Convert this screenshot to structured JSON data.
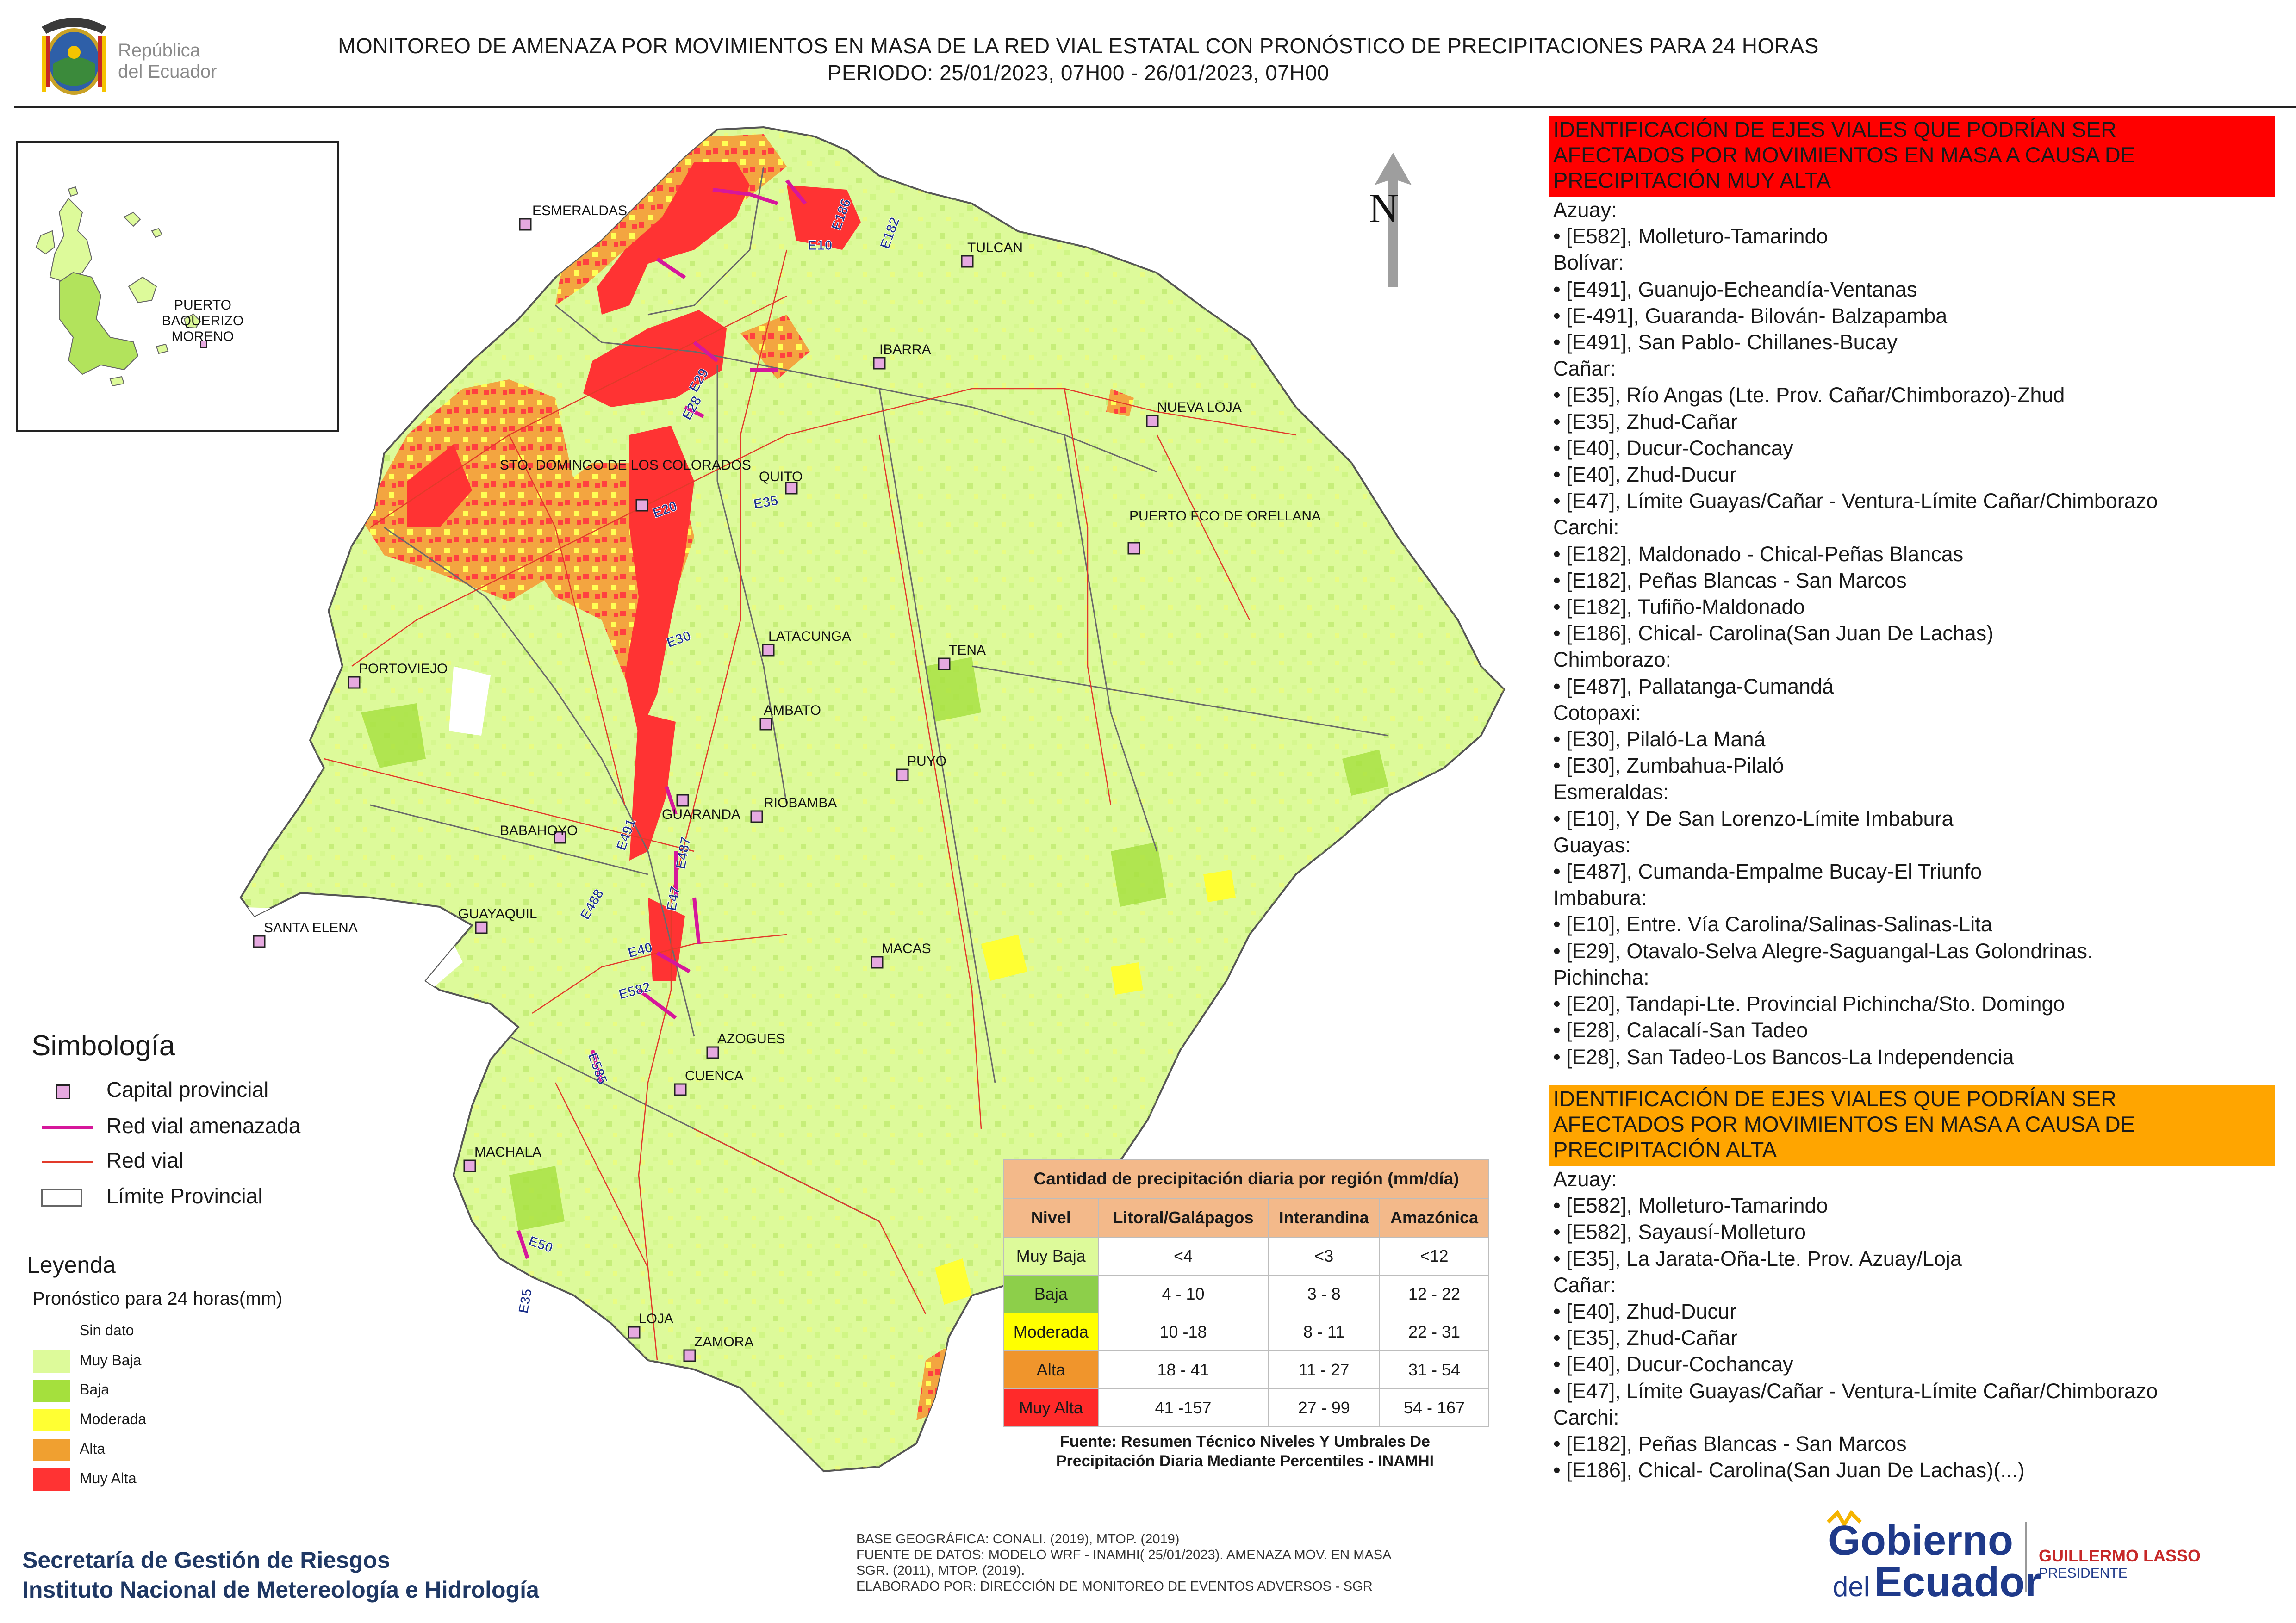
{
  "header": {
    "title_line1": "MONITOREO DE AMENAZA POR MOVIMIENTOS EN MASA DE LA RED VIAL  ESTATAL  CON PRONÓSTICO  DE  PRECIPITACIONES PARA 24 HORAS",
    "title_line2": "PERIODO: 25/01/2023, 07H00 - 26/01/2023, 07H00"
  },
  "logo_republica": {
    "line1": "República",
    "line2": "del Ecuador"
  },
  "north_label": "N",
  "cities": {
    "esmeraldas": "ESMERALDAS",
    "tulcan": "TULCAN",
    "ibarra": "IBARRA",
    "nueva_loja": "NUEVA LOJA",
    "santo_domingo": "STO. DOMINGO DE LOS COLORADOS",
    "quito": "QUITO",
    "puerto_orellana": "PUERTO FCO DE ORELLANA",
    "latacunga": "LATACUNGA",
    "tena": "TENA",
    "portoviejo": "PORTOVIEJO",
    "ambato": "AMBATO",
    "puyo": "PUYO",
    "guaranda": "GUARANDA",
    "riobamba": "RIOBAMBA",
    "babahoyo": "BABAHOYO",
    "guayaquil": "GUAYAQUIL",
    "santa_elena": "SANTA ELENA",
    "macas": "MACAS",
    "azogues": "AZOGUES",
    "cuenca": "CUENCA",
    "machala": "MACHALA",
    "loja": "LOJA",
    "zamora": "ZAMORA",
    "puerto_baquerizo": "PUERTO BAQUERIZO MORENO"
  },
  "road_labels": [
    "E10",
    "E182",
    "E186",
    "E29",
    "E28",
    "E20",
    "E35",
    "E30",
    "E491",
    "E487",
    "E488",
    "E47",
    "E40",
    "E582",
    "E585",
    "E50",
    "E35"
  ],
  "simbologia": {
    "title": "Simbología",
    "items": [
      {
        "label": "Capital provincial",
        "icon": "capital-square-icon"
      },
      {
        "label": "Red vial amenazada",
        "icon": "threatened-road-line"
      },
      {
        "label": "Red vial",
        "icon": "road-line"
      },
      {
        "label": "Límite Provincial",
        "icon": "province-boundary-box"
      }
    ]
  },
  "leyenda": {
    "title": "Leyenda",
    "subtitle": "Pronóstico para 24 horas(mm)",
    "items": [
      {
        "label": "Sin dato",
        "color": "#ffffff"
      },
      {
        "label": "Muy Baja",
        "color": "#ddfa9a"
      },
      {
        "label": "Baja",
        "color": "#a5e03d"
      },
      {
        "label": "Moderada",
        "color": "#ffff33"
      },
      {
        "label": "Alta",
        "color": "#f0a030"
      },
      {
        "label": "Muy Alta",
        "color": "#ff3333"
      }
    ]
  },
  "precip_table": {
    "caption": "Cantidad de precipitación diaria por región (mm/día)",
    "headers": [
      "Nivel",
      "Litoral/Galápagos",
      "Interandina",
      "Amazónica"
    ],
    "rows": [
      {
        "nivel": "Muy Baja",
        "color": "#ddfa9a",
        "litoral": "<4",
        "interandina": "<3",
        "amazonica": "<12"
      },
      {
        "nivel": "Baja",
        "color": "#8dcf4a",
        "litoral": "4 - 10",
        "interandina": "3 - 8",
        "amazonica": "12 - 22"
      },
      {
        "nivel": "Moderada",
        "color": "#ffff00",
        "litoral": "10 -18",
        "interandina": "8 - 11",
        "amazonica": "22 - 31"
      },
      {
        "nivel": "Alta",
        "color": "#f0952c",
        "litoral": "18 - 41",
        "interandina": "11 - 27",
        "amazonica": "31 - 54"
      },
      {
        "nivel": "Muy Alta",
        "color": "#ff2a2a",
        "litoral": "41 -157",
        "interandina": "27 - 99",
        "amazonica": "54 - 167"
      }
    ],
    "source_line1": "Fuente: Resumen Técnico Niveles Y Umbrales De",
    "source_line2": "Precipitación Diaria Mediante Percentiles - INAMHI"
  },
  "base_info": [
    "BASE GEOGRÁFICA: CONALI. (2019), MTOP. (2019)",
    "FUENTE DE DATOS: MODELO WRF - INAMHI( 25/01/2023).  AMENAZA MOV. EN MASA",
    "SGR. (2011), MTOP. (2019).",
    "ELABORADO POR: DIRECCIÓN DE MONITOREO DE EVENTOS ADVERSOS - SGR"
  ],
  "org": {
    "line1": "Secretaría de Gestión de Riesgos",
    "line2": "Instituto Nacional de Metereología e Hidrología"
  },
  "gob_logo": {
    "gobierno": "Gobierno",
    "del": "del",
    "ecuador": "Ecuador",
    "name": "GUILLERMO LASSO",
    "role": "PRESIDENTE"
  },
  "panel_muy_alta": {
    "heading": [
      "IDENTIFICACIÓN DE EJES VIALES QUE PODRÍAN SER",
      "AFECTADOS POR MOVIMIENTOS EN MASA A CAUSA DE",
      "PRECIPITACIÓN MUY ALTA"
    ],
    "items": [
      "Azuay:",
      "• [E582], Molleturo-Tamarindo",
      "Bolívar:",
      "• [E491], Guanujo-Echeandía-Ventanas",
      "• [E-491], Guaranda- Bilován- Balzapamba",
      "• [E491], San Pablo- Chillanes-Bucay",
      "Cañar:",
      "• [E35], Río Angas (Lte. Prov. Cañar/Chimborazo)-Zhud",
      "• [E35], Zhud-Cañar",
      "• [E40], Ducur-Cochancay",
      "• [E40], Zhud-Ducur",
      "• [E47], Límite Guayas/Cañar - Ventura-Límite Cañar/Chimborazo",
      "Carchi:",
      "• [E182], Maldonado - Chical-Peñas Blancas",
      "• [E182], Peñas Blancas - San Marcos",
      "• [E182], Tufiño-Maldonado",
      "• [E186], Chical- Carolina(San Juan De Lachas)",
      "Chimborazo:",
      "• [E487], Pallatanga-Cumandá",
      "Cotopaxi:",
      "• [E30], Pilaló-La Maná",
      "• [E30], Zumbahua-Pilaló",
      "Esmeraldas:",
      "• [E10], Y De San Lorenzo-Límite Imbabura",
      "Guayas:",
      "• [E487], Cumanda-Empalme Bucay-El Triunfo",
      "Imbabura:",
      "• [E10], Entre. Vía Carolina/Salinas-Salinas-Lita",
      "• [E29], Otavalo-Selva Alegre-Saguangal-Las Golondrinas.",
      "Pichincha:",
      "• [E20], Tandapi-Lte. Provincial Pichincha/Sto. Domingo",
      "• [E28], Calacalí-San Tadeo",
      "• [E28], San Tadeo-Los Bancos-La Independencia"
    ]
  },
  "panel_alta": {
    "heading": [
      "IDENTIFICACIÓN DE EJES VIALES QUE PODRÍAN SER",
      "AFECTADOS POR MOVIMIENTOS EN MASA A CAUSA DE",
      "PRECIPITACIÓN  ALTA"
    ],
    "items": [
      "Azuay:",
      "• [E582], Molleturo-Tamarindo",
      "• [E582], Sayausí-Molleturo",
      "• [E35], La Jarata-Oña-Lte. Prov. Azuay/Loja",
      "Cañar:",
      "• [E40], Zhud-Ducur",
      "• [E35], Zhud-Cañar",
      "• [E40], Ducur-Cochancay",
      "• [E47], Límite Guayas/Cañar - Ventura-Límite Cañar/Chimborazo",
      "Carchi:",
      "• [E182], Peñas Blancas - San Marcos",
      "• [E186], Chical- Carolina(San Juan De Lachas)(...)"
    ]
  }
}
